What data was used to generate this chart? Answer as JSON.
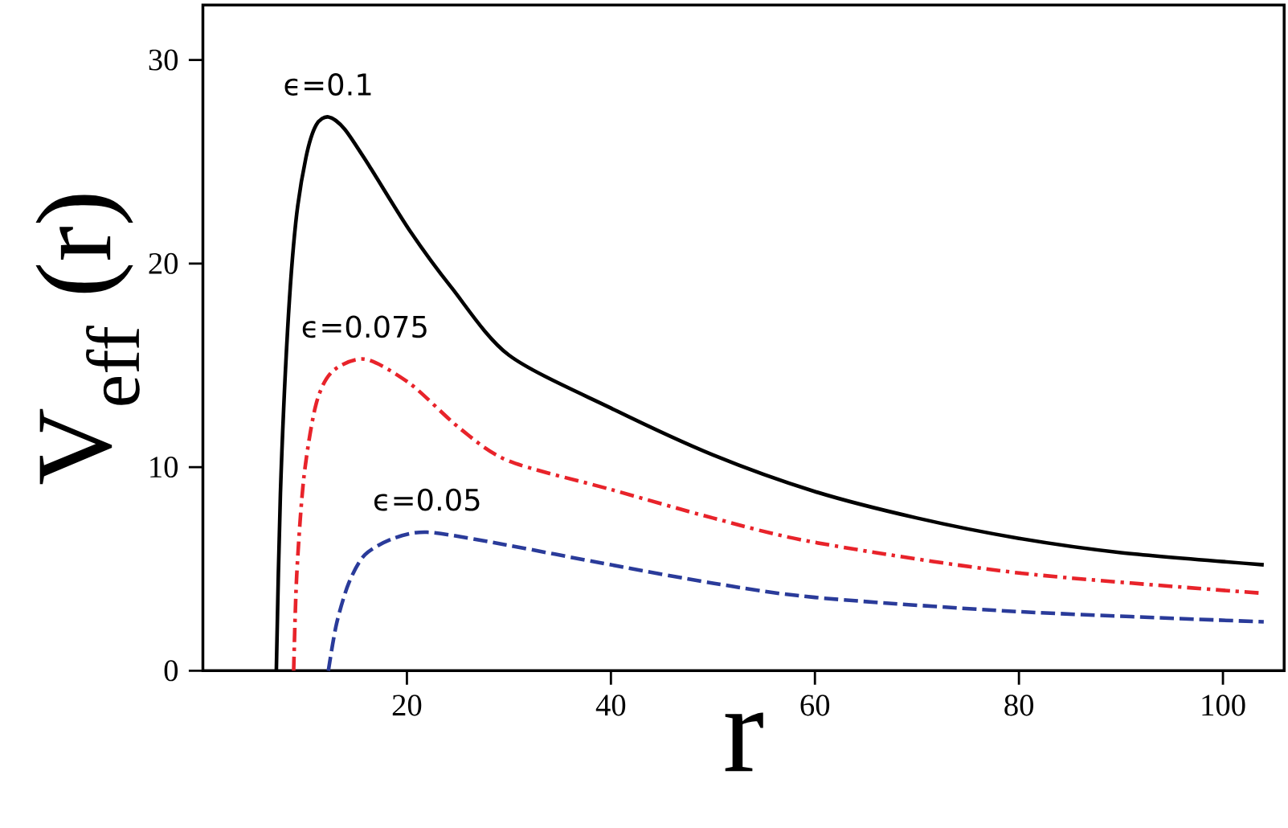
{
  "chart_data": {
    "type": "line",
    "xlabel": "r",
    "ylabel": "V$_{eff}$ (r)",
    "xlim": [
      0,
      106
    ],
    "ylim": [
      0,
      32.7
    ],
    "xticks": [
      20,
      40,
      60,
      80,
      100
    ],
    "yticks": [
      0,
      10,
      20,
      30
    ],
    "grid": false,
    "marker": "none",
    "series": [
      {
        "color": "#000000",
        "line_style": "solid",
        "x": [
          7.2,
          7.6,
          8.3,
          9.1,
          10.1,
          11.1,
          12.3,
          13.9,
          16.3,
          20.3,
          24.4,
          30,
          40,
          50,
          60,
          70,
          80,
          90,
          104
        ],
        "values": [
          0,
          8.7,
          16.7,
          22,
          25.2,
          26.8,
          27.2,
          26.6,
          24.8,
          21.6,
          18.8,
          15.5,
          12.9,
          10.6,
          8.8,
          7.5,
          6.5,
          5.8,
          5.2
        ]
      },
      {
        "color": "#e8232a",
        "line_style": "dashdot",
        "x": [
          8.9,
          9.2,
          9.9,
          11.1,
          12.7,
          15.9,
          20.3,
          25.2,
          30,
          40,
          50,
          60,
          80,
          104
        ],
        "values": [
          0,
          4.7,
          9.5,
          13.1,
          14.7,
          15.3,
          14.1,
          11.9,
          10.3,
          8.9,
          7.5,
          6.3,
          4.8,
          3.8
        ]
      },
      {
        "color": "#2a3b9a",
        "line_style": "dashed",
        "x": [
          12.3,
          13.1,
          14.3,
          15.9,
          18.7,
          22,
          28.4,
          40,
          50,
          60,
          80,
          104
        ],
        "values": [
          0,
          2.3,
          4.3,
          5.7,
          6.5,
          6.8,
          6.3,
          5.2,
          4.3,
          3.6,
          2.9,
          2.4
        ]
      }
    ],
    "annotations": [
      "ϵ=0.1",
      "ϵ=0.075",
      "ϵ=0.05"
    ]
  }
}
